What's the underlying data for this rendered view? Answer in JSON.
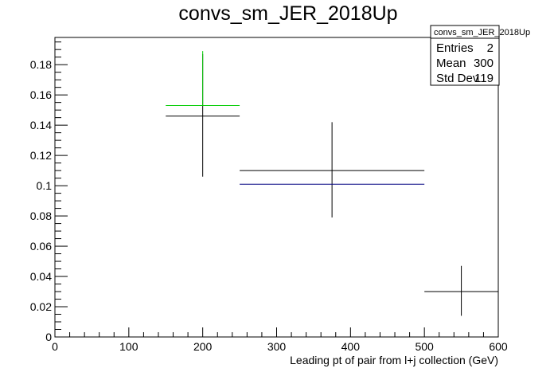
{
  "chart_data": {
    "type": "scatter",
    "title": "convs_sm_JER_2018Up",
    "xlabel": "Leading pt of pair from l+j collection (GeV)",
    "ylabel": "",
    "xlim": [
      0,
      600
    ],
    "ylim": [
      0,
      0.198
    ],
    "grid": false,
    "x_ticks": [
      0,
      100,
      200,
      300,
      400,
      500,
      600
    ],
    "x_tick_labels": [
      "0",
      "100",
      "200",
      "300",
      "400",
      "500",
      "600"
    ],
    "y_ticks": [
      0,
      0.02,
      0.04,
      0.06,
      0.08,
      0.1,
      0.12,
      0.14,
      0.16,
      0.18
    ],
    "y_tick_labels": [
      "0",
      "0.02",
      "0.04",
      "0.06",
      "0.08",
      "0.1",
      "0.12",
      "0.14",
      "0.16",
      "0.18"
    ],
    "series": [
      {
        "color": "#000000",
        "points": [
          {
            "x": 200,
            "y": 0.146,
            "xerr_low": 150,
            "xerr_high": 250,
            "yerr_low": 0.106,
            "yerr_high": 0.187
          },
          {
            "x": 375,
            "y": 0.11,
            "xerr_low": 250,
            "xerr_high": 500,
            "yerr_low": 0.079,
            "yerr_high": 0.142
          },
          {
            "x": 550,
            "y": 0.03,
            "xerr_low": 500,
            "xerr_high": 600,
            "yerr_low": 0.014,
            "yerr_high": 0.047
          }
        ]
      },
      {
        "color": "#00cc00",
        "points": [
          {
            "x": 200,
            "y": 0.153,
            "xerr_low": 150,
            "xerr_high": 250,
            "yerr_low": 0.153,
            "yerr_high": 0.189
          }
        ]
      },
      {
        "color": "#000080",
        "points": [
          {
            "x": 375,
            "y": 0.101,
            "xerr_low": 250,
            "xerr_high": 500,
            "yerr_low": 0.101,
            "yerr_high": 0.101
          }
        ]
      }
    ],
    "stats_box": {
      "title": "convs_sm_JER_2018Up",
      "rows": [
        {
          "label": "Entries",
          "value": "2"
        },
        {
          "label": "Mean",
          "value": "300"
        },
        {
          "label": "Std Dev",
          "value": "119"
        }
      ]
    }
  }
}
